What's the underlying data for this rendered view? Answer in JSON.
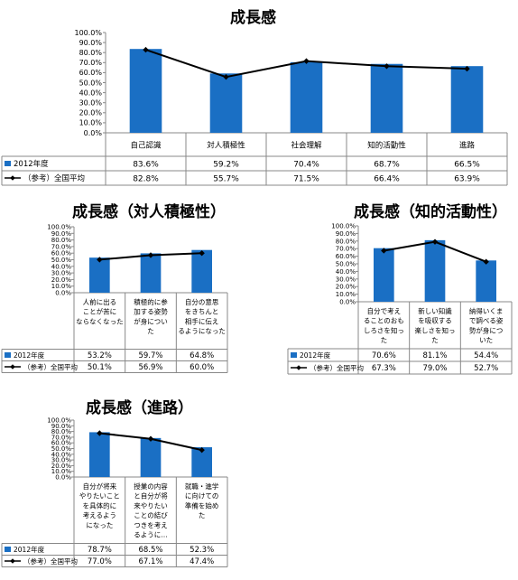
{
  "chart_data": [
    {
      "type": "bar",
      "title": "成長感",
      "categories": [
        "自己認識",
        "対人積極性",
        "社会理解",
        "知的活動性",
        "進路"
      ],
      "series": [
        {
          "name": "2012年度",
          "type": "bar",
          "values": [
            83.6,
            59.2,
            70.4,
            68.7,
            66.5
          ],
          "labels": [
            "83.6%",
            "59.2%",
            "70.4%",
            "68.7%",
            "66.5%"
          ]
        },
        {
          "name": "（参考）全国平均",
          "type": "line",
          "values": [
            82.8,
            55.7,
            71.5,
            66.4,
            63.9
          ],
          "labels": [
            "82.8%",
            "55.7%",
            "71.5%",
            "66.4%",
            "63.9%"
          ]
        }
      ],
      "ylim": [
        0,
        100
      ],
      "yticks": [
        "100.0%",
        "90.0%",
        "80.0%",
        "70.0%",
        "60.0%",
        "50.0%",
        "40.0%",
        "30.0%",
        "20.0%",
        "10.0%",
        "0.0%"
      ],
      "grid": false,
      "legend": "data-table",
      "colors": {
        "bar": "#1a6fc4",
        "line": "#000000"
      }
    },
    {
      "type": "bar",
      "title": "成長感（対人積極性）",
      "categories": [
        "人前に出ることが苦にならなくなった",
        "積極的に参加する姿勢が身についた",
        "自分の意思をきちんと相手に伝えるようになった"
      ],
      "category_lines": [
        [
          "人前に出る",
          "ことが苦に",
          "ならなくなった"
        ],
        [
          "積極的に参",
          "加する姿勢",
          "が身につい",
          "た"
        ],
        [
          "自分の意思",
          "をきちんと",
          "相手に伝え",
          "るようになった"
        ]
      ],
      "series": [
        {
          "name": "2012年度",
          "type": "bar",
          "values": [
            53.2,
            59.7,
            64.8
          ],
          "labels": [
            "53.2%",
            "59.7%",
            "64.8%"
          ]
        },
        {
          "name": "（参考）全国平均",
          "type": "line",
          "values": [
            50.1,
            56.9,
            60.0
          ],
          "labels": [
            "50.1%",
            "56.9%",
            "60.0%"
          ]
        }
      ],
      "ylim": [
        0,
        100
      ],
      "yticks": [
        "100.0%",
        "90.0%",
        "80.0%",
        "70.0%",
        "60.0%",
        "50.0%",
        "40.0%",
        "30.0%",
        "20.0%",
        "10.0%",
        "0.0%"
      ],
      "grid": false,
      "legend": "data-table"
    },
    {
      "type": "bar",
      "title": "成長感（知的活動性）",
      "categories": [
        "自分で考えることのおもしろさを知った",
        "新しい知識を吸収する楽しさを知った",
        "納得いくまで調べる姿勢が身についた"
      ],
      "category_lines": [
        [
          "自分で考え",
          "ることのおも",
          "しろさを知っ",
          "た"
        ],
        [
          "新しい知識",
          "を吸収する",
          "楽しさを知っ",
          "た"
        ],
        [
          "納得いくま",
          "で調べる姿",
          "勢が身につ",
          "いた"
        ]
      ],
      "series": [
        {
          "name": "2012年度",
          "type": "bar",
          "values": [
            70.6,
            81.1,
            54.4
          ],
          "labels": [
            "70.6%",
            "81.1%",
            "54.4%"
          ]
        },
        {
          "name": "（参考）全国平均",
          "type": "line",
          "values": [
            67.3,
            79.0,
            52.7
          ],
          "labels": [
            "67.3%",
            "79.0%",
            "52.7%"
          ]
        }
      ],
      "ylim": [
        0,
        100
      ],
      "yticks": [
        "100.0%",
        "90.0%",
        "80.0%",
        "70.0%",
        "60.0%",
        "50.0%",
        "40.0%",
        "30.0%",
        "20.0%",
        "10.0%",
        "0.0%"
      ],
      "grid": false,
      "legend": "data-table"
    },
    {
      "type": "bar",
      "title": "成長感（進路）",
      "categories": [
        "自分が将来やりたいことを具体的に考えるようになった",
        "授業の内容と自分が将来やりたいことの結びつきを考えるように…",
        "就職・進学に向けての準備を始めた"
      ],
      "category_lines": [
        [
          "自分が将来",
          "やりたいこと",
          "を具体的に",
          "考えるよう",
          "になった"
        ],
        [
          "授業の内容",
          "と自分が将",
          "来やりたい",
          "ことの結び",
          "つきを考え",
          "るように…"
        ],
        [
          "就職・進学",
          "に向けての",
          "準備を始め",
          "た"
        ]
      ],
      "series": [
        {
          "name": "2012年度",
          "type": "bar",
          "values": [
            78.7,
            68.5,
            52.3
          ],
          "labels": [
            "78.7%",
            "68.5%",
            "52.3%"
          ]
        },
        {
          "name": "（参考）全国平均",
          "type": "line",
          "values": [
            77.0,
            67.1,
            47.4
          ],
          "labels": [
            "77.0%",
            "67.1%",
            "47.4%"
          ]
        }
      ],
      "ylim": [
        0,
        100
      ],
      "yticks": [
        "100.0%",
        "90.0%",
        "80.0%",
        "70.0%",
        "60.0%",
        "50.0%",
        "40.0%",
        "30.0%",
        "20.0%",
        "10.0%",
        "0.0%"
      ],
      "grid": false,
      "legend": "data-table"
    }
  ]
}
